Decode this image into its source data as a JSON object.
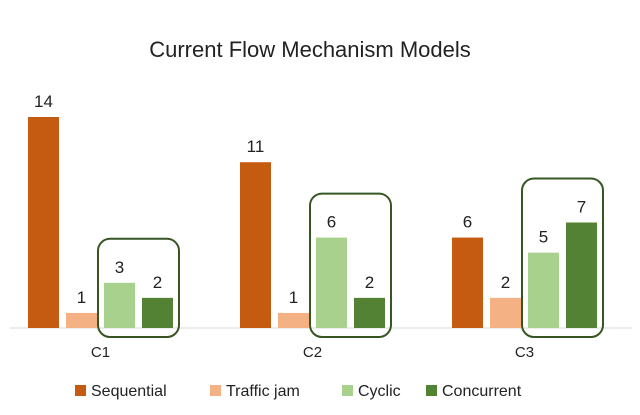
{
  "chart_data": {
    "type": "bar",
    "title": "Current Flow Mechanism Models",
    "categories": [
      "C1",
      "C2",
      "C3"
    ],
    "series": [
      {
        "name": "Sequential",
        "color": "#c55a11",
        "values": [
          14,
          11,
          6
        ]
      },
      {
        "name": "Traffic jam",
        "color": "#f4b183",
        "values": [
          1,
          1,
          2
        ]
      },
      {
        "name": "Cyclic",
        "color": "#a9d18e",
        "values": [
          3,
          6,
          5
        ]
      },
      {
        "name": "Concurrent",
        "color": "#548235",
        "values": [
          2,
          2,
          7
        ]
      }
    ],
    "ylim": [
      0,
      14
    ],
    "grid": false,
    "legend": "bottom",
    "highlight": {
      "note": "rounded outline grouping the Cyclic and Concurrent bars in each category",
      "series": [
        "Cyclic",
        "Concurrent"
      ],
      "color": "#375623"
    }
  }
}
